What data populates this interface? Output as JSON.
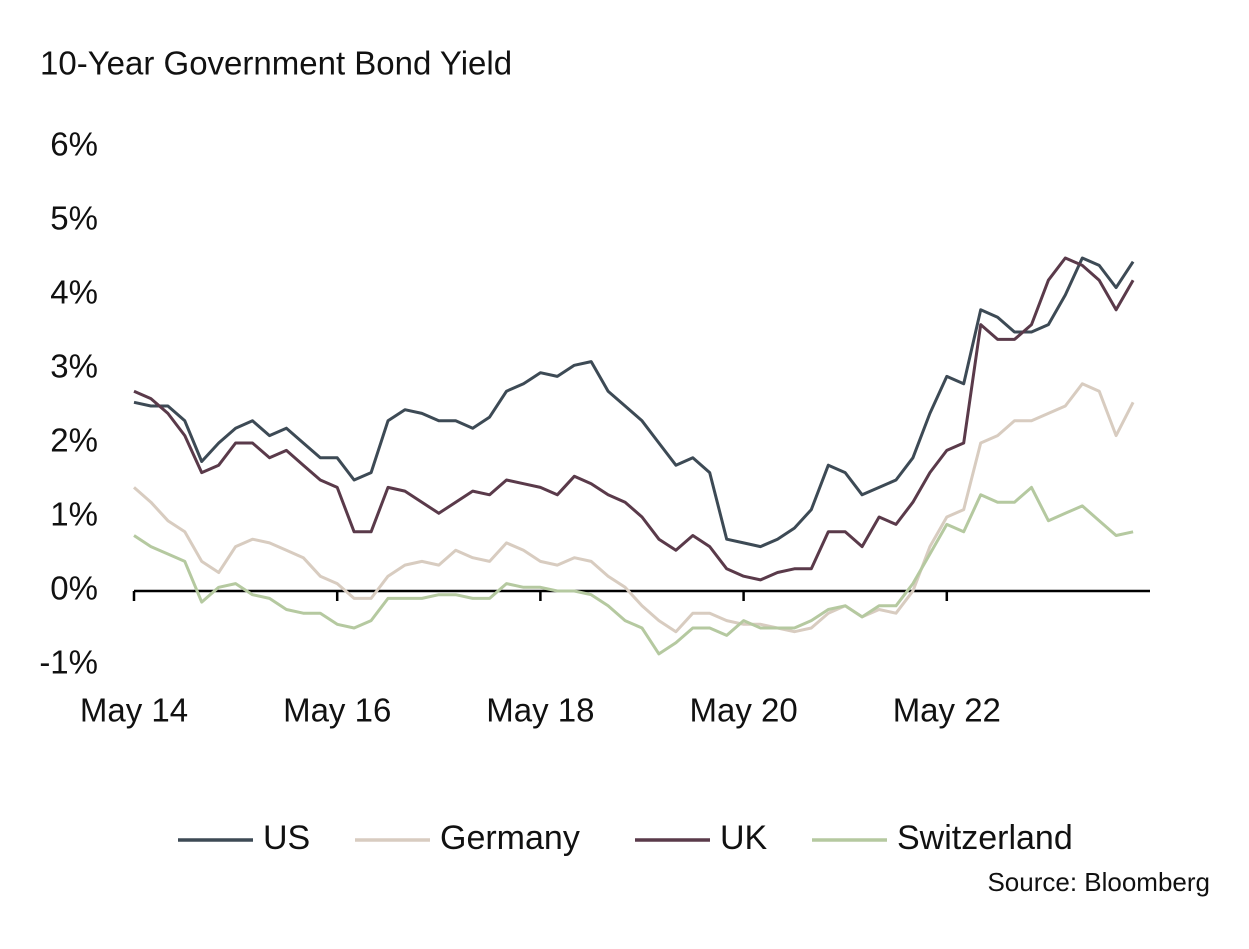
{
  "chart_data": {
    "type": "line",
    "title": "10-Year Government Bond Yield",
    "source": "Source: Bloomberg",
    "x": [
      "2014-05",
      "2014-07",
      "2014-09",
      "2014-11",
      "2015-01",
      "2015-03",
      "2015-05",
      "2015-07",
      "2015-09",
      "2015-11",
      "2016-01",
      "2016-03",
      "2016-05",
      "2016-07",
      "2016-09",
      "2016-11",
      "2017-01",
      "2017-03",
      "2017-05",
      "2017-07",
      "2017-09",
      "2017-11",
      "2018-01",
      "2018-03",
      "2018-05",
      "2018-07",
      "2018-09",
      "2018-11",
      "2019-01",
      "2019-03",
      "2019-05",
      "2019-07",
      "2019-09",
      "2019-11",
      "2020-01",
      "2020-03",
      "2020-05",
      "2020-07",
      "2020-09",
      "2020-11",
      "2021-01",
      "2021-03",
      "2021-05",
      "2021-07",
      "2021-09",
      "2021-11",
      "2022-01",
      "2022-03",
      "2022-05",
      "2022-07",
      "2022-09",
      "2022-11",
      "2023-01",
      "2023-03",
      "2023-05",
      "2023-07",
      "2023-09",
      "2023-11",
      "2024-01",
      "2024-03"
    ],
    "series": [
      {
        "name": "US",
        "color": "#3d4a55",
        "values": [
          2.55,
          2.5,
          2.5,
          2.3,
          1.75,
          2.0,
          2.2,
          2.3,
          2.1,
          2.2,
          2.0,
          1.8,
          1.8,
          1.5,
          1.6,
          2.3,
          2.45,
          2.4,
          2.3,
          2.3,
          2.2,
          2.35,
          2.7,
          2.8,
          2.95,
          2.9,
          3.05,
          3.1,
          2.7,
          2.5,
          2.3,
          2.0,
          1.7,
          1.8,
          1.6,
          0.7,
          0.65,
          0.6,
          0.7,
          0.85,
          1.1,
          1.7,
          1.6,
          1.3,
          1.4,
          1.5,
          1.8,
          2.4,
          2.9,
          2.8,
          3.8,
          3.7,
          3.5,
          3.5,
          3.6,
          4.0,
          4.5,
          4.4,
          4.1,
          4.45
        ]
      },
      {
        "name": "Germany",
        "color": "#d8ccc0",
        "values": [
          1.4,
          1.2,
          0.95,
          0.8,
          0.4,
          0.25,
          0.6,
          0.7,
          0.65,
          0.55,
          0.45,
          0.2,
          0.1,
          -0.1,
          -0.1,
          0.2,
          0.35,
          0.4,
          0.35,
          0.55,
          0.45,
          0.4,
          0.65,
          0.55,
          0.4,
          0.35,
          0.45,
          0.4,
          0.2,
          0.05,
          -0.2,
          -0.4,
          -0.55,
          -0.3,
          -0.3,
          -0.4,
          -0.45,
          -0.45,
          -0.5,
          -0.55,
          -0.5,
          -0.3,
          -0.2,
          -0.35,
          -0.25,
          -0.3,
          0.0,
          0.6,
          1.0,
          1.1,
          2.0,
          2.1,
          2.3,
          2.3,
          2.4,
          2.5,
          2.8,
          2.7,
          2.1,
          2.55
        ]
      },
      {
        "name": "UK",
        "color": "#5a3a4a",
        "values": [
          2.7,
          2.6,
          2.4,
          2.1,
          1.6,
          1.7,
          2.0,
          2.0,
          1.8,
          1.9,
          1.7,
          1.5,
          1.4,
          0.8,
          0.8,
          1.4,
          1.35,
          1.2,
          1.05,
          1.2,
          1.35,
          1.3,
          1.5,
          1.45,
          1.4,
          1.3,
          1.55,
          1.45,
          1.3,
          1.2,
          1.0,
          0.7,
          0.55,
          0.75,
          0.6,
          0.3,
          0.2,
          0.15,
          0.25,
          0.3,
          0.3,
          0.8,
          0.8,
          0.6,
          1.0,
          0.9,
          1.2,
          1.6,
          1.9,
          2.0,
          3.6,
          3.4,
          3.4,
          3.6,
          4.2,
          4.5,
          4.4,
          4.2,
          3.8,
          4.2
        ]
      },
      {
        "name": "Switzerland",
        "color": "#b5c9a0",
        "values": [
          0.75,
          0.6,
          0.5,
          0.4,
          -0.15,
          0.05,
          0.1,
          -0.05,
          -0.1,
          -0.25,
          -0.3,
          -0.3,
          -0.45,
          -0.5,
          -0.4,
          -0.1,
          -0.1,
          -0.1,
          -0.05,
          -0.05,
          -0.1,
          -0.1,
          0.1,
          0.05,
          0.05,
          0.0,
          0.0,
          -0.05,
          -0.2,
          -0.4,
          -0.5,
          -0.85,
          -0.7,
          -0.5,
          -0.5,
          -0.6,
          -0.4,
          -0.5,
          -0.5,
          -0.5,
          -0.4,
          -0.25,
          -0.2,
          -0.35,
          -0.2,
          -0.2,
          0.1,
          0.5,
          0.9,
          0.8,
          1.3,
          1.2,
          1.2,
          1.4,
          0.95,
          1.05,
          1.15,
          0.95,
          0.75,
          0.8
        ]
      }
    ],
    "xlim": [
      "2014-05",
      "2024-05"
    ],
    "xticks": [
      {
        "value": "2014-05",
        "label": "May 14"
      },
      {
        "value": "2016-05",
        "label": "May 16"
      },
      {
        "value": "2018-05",
        "label": "May 18"
      },
      {
        "value": "2020-05",
        "label": "May 20"
      },
      {
        "value": "2022-05",
        "label": "May 22"
      }
    ],
    "ylim": [
      -1,
      6
    ],
    "yticks": [
      {
        "value": -1,
        "label": "-1%"
      },
      {
        "value": 0,
        "label": "0%"
      },
      {
        "value": 1,
        "label": "1%"
      },
      {
        "value": 2,
        "label": "2%"
      },
      {
        "value": 3,
        "label": "3%"
      },
      {
        "value": 4,
        "label": "4%"
      },
      {
        "value": 5,
        "label": "5%"
      },
      {
        "value": 6,
        "label": "6%"
      }
    ],
    "legend": "bottom"
  }
}
